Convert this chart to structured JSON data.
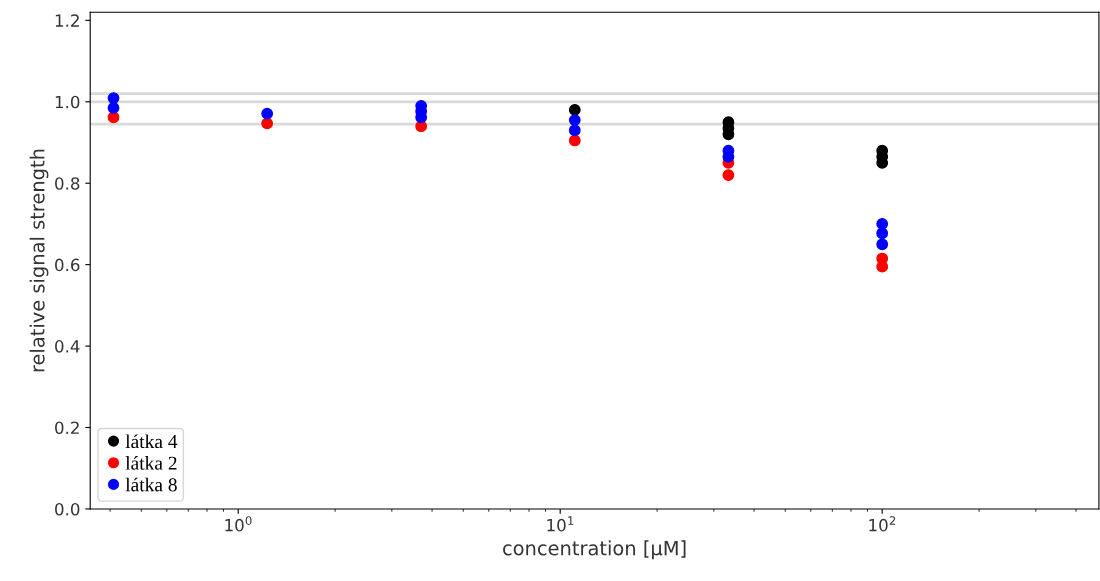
{
  "chart_data": {
    "type": "scatter",
    "xlabel": "concentration [μM]",
    "ylabel": "relative signal strength",
    "log": "x",
    "xlim": [
      0.347,
      471
    ],
    "ylim": [
      0,
      1.22
    ],
    "xticks": [
      {
        "value": 1,
        "label": "10$^{0}$"
      },
      {
        "value": 10,
        "label": "10$^{1}$"
      },
      {
        "value": 100,
        "label": "10$^{2}$"
      }
    ],
    "yticks": [
      {
        "value": 0,
        "label": "0.0"
      },
      {
        "value": 0.2,
        "label": "0.2"
      },
      {
        "value": 0.4,
        "label": "0.4"
      },
      {
        "value": 0.6,
        "label": "0.6"
      },
      {
        "value": 0.8,
        "label": "0.8"
      },
      {
        "value": 1.0,
        "label": "1.0"
      },
      {
        "value": 1.2,
        "label": "1.2"
      }
    ],
    "grid": false,
    "legend": "bottom left",
    "marker": "circle",
    "ref_lines": [
      {
        "axis": "y",
        "value": 1.02,
        "color": "#d9d9d9"
      },
      {
        "axis": "y",
        "value": 1.0,
        "color": "#d9d9d9"
      },
      {
        "axis": "y",
        "value": 0.945,
        "color": "#d9d9d9"
      }
    ],
    "series": [
      {
        "name": "látka 4",
        "color": "#000000",
        "x": [
          11.1,
          33.3,
          33.3,
          33.3,
          100,
          100,
          100
        ],
        "values": [
          0.98,
          0.95,
          0.935,
          0.92,
          0.88,
          0.865,
          0.85
        ]
      },
      {
        "name": "látka 2",
        "color": "#ff0000",
        "x": [
          0.41,
          1.23,
          3.7,
          11.1,
          33.3,
          33.3,
          100,
          100
        ],
        "values": [
          0.962,
          0.947,
          0.94,
          0.905,
          0.85,
          0.82,
          0.615,
          0.595
        ]
      },
      {
        "name": "látka 8",
        "color": "#0000ff",
        "x": [
          0.41,
          0.41,
          1.23,
          3.7,
          3.7,
          3.7,
          11.1,
          11.1,
          33.3,
          33.3,
          100,
          100,
          100
        ],
        "values": [
          1.009,
          0.985,
          0.971,
          0.99,
          0.977,
          0.962,
          0.955,
          0.93,
          0.88,
          0.865,
          0.7,
          0.677,
          0.65
        ]
      }
    ]
  }
}
